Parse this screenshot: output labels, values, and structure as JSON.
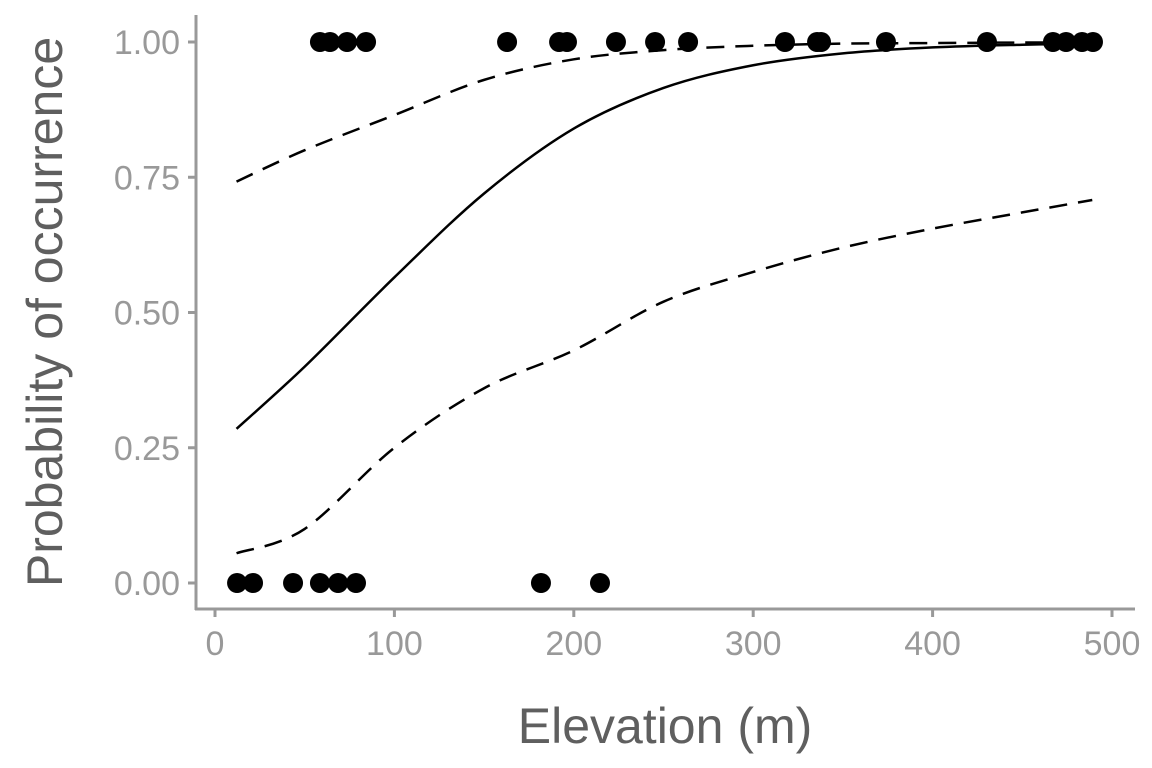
{
  "chart_data": {
    "type": "scatter",
    "xlabel": "Elevation (m)",
    "ylabel": "Probability of occurrence",
    "xlim": [
      0,
      500
    ],
    "ylim": [
      0,
      1
    ],
    "xticks": [
      "0",
      "100",
      "200",
      "300",
      "400",
      "500"
    ],
    "yticks": [
      "0.00",
      "0.25",
      "0.50",
      "0.75",
      "1.00"
    ],
    "grid": false,
    "points": {
      "present_x": [
        58.5,
        64.1,
        73.6,
        84.2,
        162.8,
        191.8,
        196.2,
        223.5,
        245.3,
        263.7,
        317.7,
        335.6,
        337.8,
        374.0,
        430.3,
        467.1,
        474.4,
        483.3,
        489.4
      ],
      "absent_x": [
        12.3,
        21.2,
        43.5,
        58.5,
        68.6,
        78.6,
        181.7,
        214.6
      ]
    },
    "curves": {
      "x": [
        12,
        50,
        100,
        150,
        200,
        250,
        300,
        350,
        400,
        450,
        489
      ],
      "fit": [
        0.285,
        0.4,
        0.565,
        0.72,
        0.84,
        0.915,
        0.957,
        0.979,
        0.99,
        0.995,
        0.997
      ],
      "lower": [
        0.055,
        0.1,
        0.25,
        0.36,
        0.43,
        0.52,
        0.575,
        0.62,
        0.655,
        0.685,
        0.708
      ],
      "upper": [
        0.742,
        0.8,
        0.865,
        0.93,
        0.968,
        0.985,
        0.993,
        0.997,
        0.998,
        0.999,
        0.999
      ]
    },
    "colors": {
      "points": "#000000",
      "lines": "#000000",
      "axis": "#999999",
      "tick_text": "#999999",
      "title_text": "#5f5f5f"
    }
  }
}
